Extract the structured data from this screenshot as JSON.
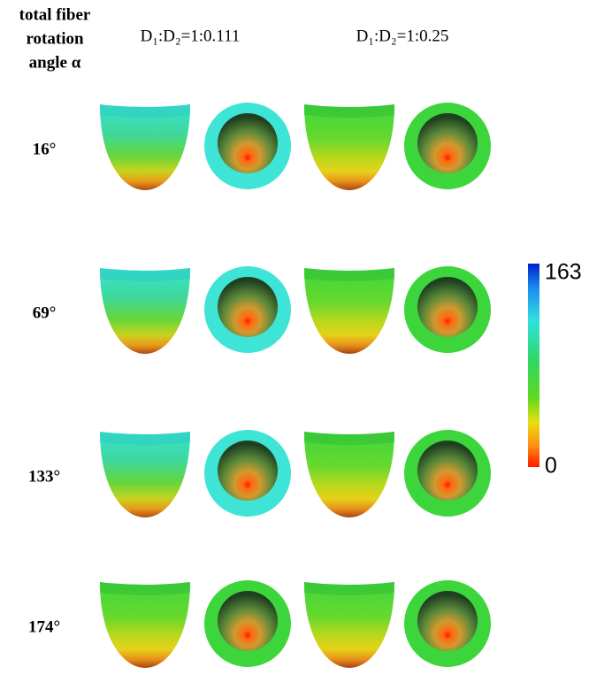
{
  "header": {
    "title_lines": [
      "total fiber",
      "rotation",
      "angle α"
    ]
  },
  "columns": [
    "D₁:D₂=1:0.111",
    "D₁:D₂=1:0.25"
  ],
  "rows": [
    "16°",
    "69°",
    "133°",
    "174°"
  ],
  "colorbar": {
    "max": 163,
    "min": 0
  }
}
